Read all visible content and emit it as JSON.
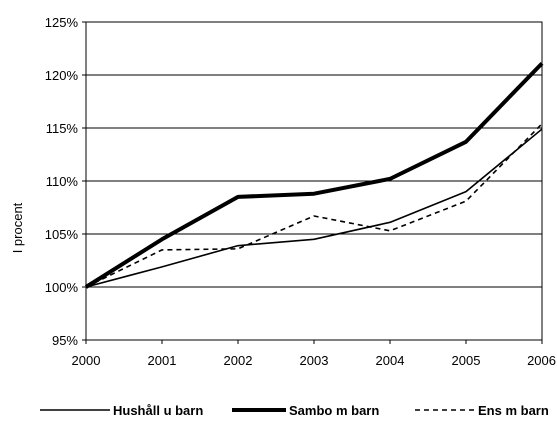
{
  "chart_data": {
    "type": "line",
    "title": "",
    "xlabel": "",
    "ylabel": "I procent",
    "x": [
      "2000",
      "2001",
      "2002",
      "2003",
      "2004",
      "2005",
      "2006"
    ],
    "ylim": [
      95,
      125
    ],
    "yticks": [
      "95%",
      "100%",
      "105%",
      "110%",
      "115%",
      "120%",
      "125%"
    ],
    "grid": "horizontal",
    "legend": "bottom",
    "series": [
      {
        "name": "Hushåll u barn",
        "style": "thin-solid",
        "values": [
          100,
          101.9,
          103.9,
          104.5,
          106.1,
          109.0,
          114.9
        ]
      },
      {
        "name": "Sambo m barn",
        "style": "thick-solid",
        "values": [
          100,
          104.5,
          108.5,
          108.8,
          110.2,
          113.7,
          121.1
        ]
      },
      {
        "name": "Ens m barn",
        "style": "dashed",
        "values": [
          100,
          103.5,
          103.6,
          106.7,
          105.3,
          108.1,
          115.4
        ]
      }
    ]
  }
}
